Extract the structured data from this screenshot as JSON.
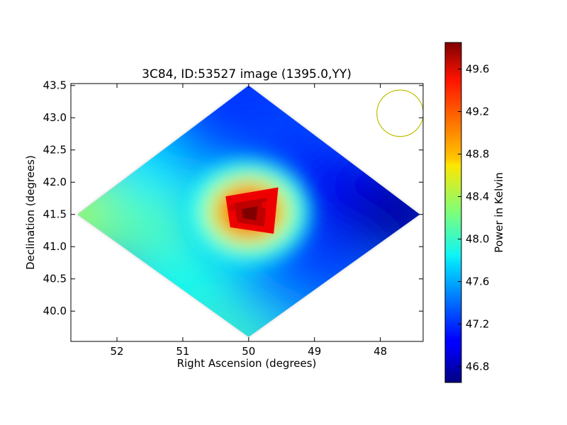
{
  "chart_data": {
    "type": "heatmap",
    "title": "3C84, ID:53527 image (1395.0,YY)",
    "xlabel": "Right Ascension (degrees)",
    "ylabel": "Declination (degrees)",
    "xlim": [
      52.7,
      47.35
    ],
    "ylim": [
      39.53,
      43.53
    ],
    "x_inverted": true,
    "x_ticks": [
      52,
      51,
      50,
      49,
      48
    ],
    "x_tick_labels": [
      "52",
      "51",
      "50",
      "49",
      "48"
    ],
    "y_ticks": [
      40.0,
      40.5,
      41.0,
      41.5,
      42.0,
      42.5,
      43.0,
      43.5
    ],
    "y_tick_labels": [
      "40.0",
      "40.5",
      "41.0",
      "41.5",
      "42.0",
      "42.5",
      "43.0",
      "43.5"
    ],
    "colorbar": {
      "label": "Power in Kelvin",
      "colormap": "jet",
      "range": [
        46.65,
        49.85
      ],
      "ticks": [
        46.8,
        47.2,
        47.6,
        48.0,
        48.4,
        48.8,
        49.2,
        49.6
      ],
      "tick_labels": [
        "46.8",
        "47.2",
        "47.6",
        "48.0",
        "48.4",
        "48.8",
        "49.2",
        "49.6"
      ]
    },
    "coverage": {
      "shape": "diamond",
      "vertices_radec": [
        [
          52.6,
          41.5
        ],
        [
          50.0,
          43.5
        ],
        [
          47.4,
          41.5
        ],
        [
          50.0,
          39.6
        ]
      ]
    },
    "source_peak": {
      "ra": 50.0,
      "dec": 41.5,
      "value": 49.85
    },
    "beam_circle": {
      "ra": 47.7,
      "dec": 43.07,
      "radius_deg": 0.36,
      "color": "#bfbf00"
    },
    "field_points": [
      {
        "ra": 52.55,
        "dec": 41.5,
        "value": 48.4
      },
      {
        "ra": 51.6,
        "dec": 41.5,
        "value": 48.15
      },
      {
        "ra": 50.9,
        "dec": 40.4,
        "value": 47.9
      },
      {
        "ra": 50.0,
        "dec": 39.75,
        "value": 48.05
      },
      {
        "ra": 49.5,
        "dec": 40.4,
        "value": 47.55
      },
      {
        "ra": 48.9,
        "dec": 40.8,
        "value": 47.25
      },
      {
        "ra": 51.3,
        "dec": 42.3,
        "value": 47.8
      },
      {
        "ra": 50.6,
        "dec": 42.9,
        "value": 47.3
      },
      {
        "ra": 50.0,
        "dec": 43.35,
        "value": 47.15
      },
      {
        "ra": 49.4,
        "dec": 42.8,
        "value": 47.25
      },
      {
        "ra": 48.8,
        "dec": 42.0,
        "value": 47.15
      },
      {
        "ra": 48.3,
        "dec": 41.8,
        "value": 47.0
      },
      {
        "ra": 47.6,
        "dec": 41.5,
        "value": 46.75
      }
    ],
    "core_points": [
      {
        "ra": 50.0,
        "dec": 41.55,
        "value": 49.85
      },
      {
        "ra": 50.25,
        "dec": 41.6,
        "value": 49.6
      },
      {
        "ra": 49.75,
        "dec": 41.65,
        "value": 49.5
      }
    ]
  }
}
